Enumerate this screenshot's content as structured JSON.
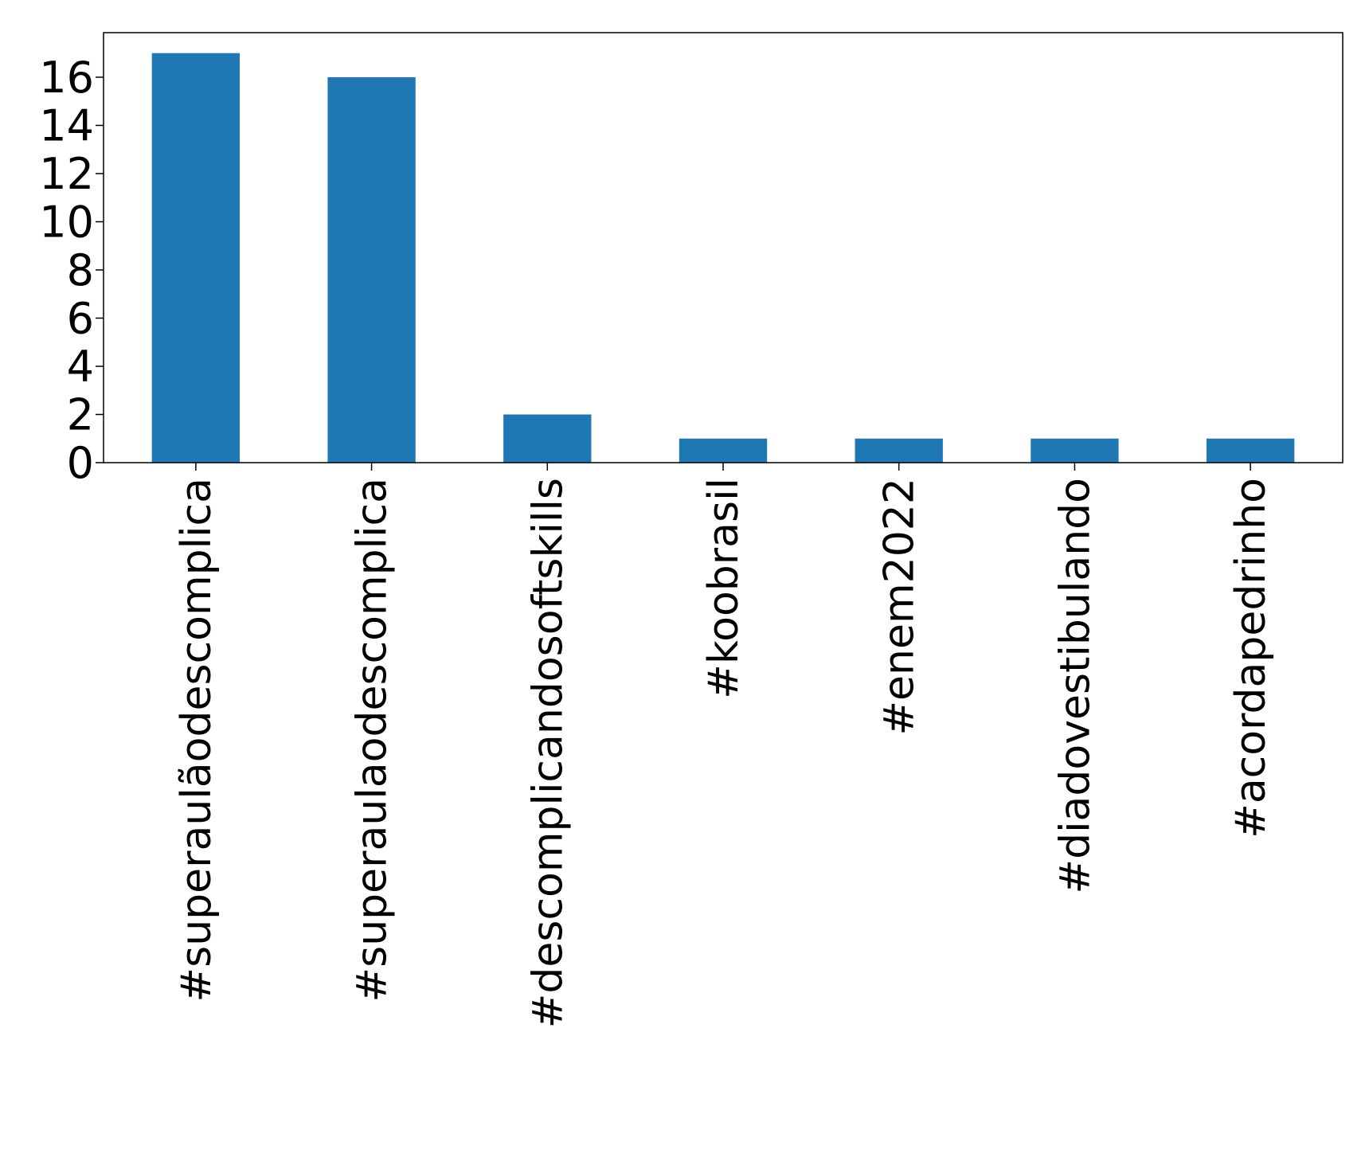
{
  "chart_data": {
    "type": "bar",
    "categories": [
      "#superaulãodescomplica",
      "#superaulaodescomplica",
      "#descomplicandosoftskills",
      "#koobrasil",
      "#enem2022",
      "#diadovestibulando",
      "#acordapedrinho"
    ],
    "values": [
      17,
      16,
      2,
      1,
      1,
      1,
      1
    ],
    "yticks": [
      "0",
      "2",
      "4",
      "6",
      "8",
      "10",
      "12",
      "14",
      "16"
    ],
    "ylim": [
      0,
      17.85
    ],
    "grid": false,
    "legend": "none",
    "bar_color": "#1f77b4",
    "title": "",
    "xlabel": "",
    "ylabel": ""
  }
}
